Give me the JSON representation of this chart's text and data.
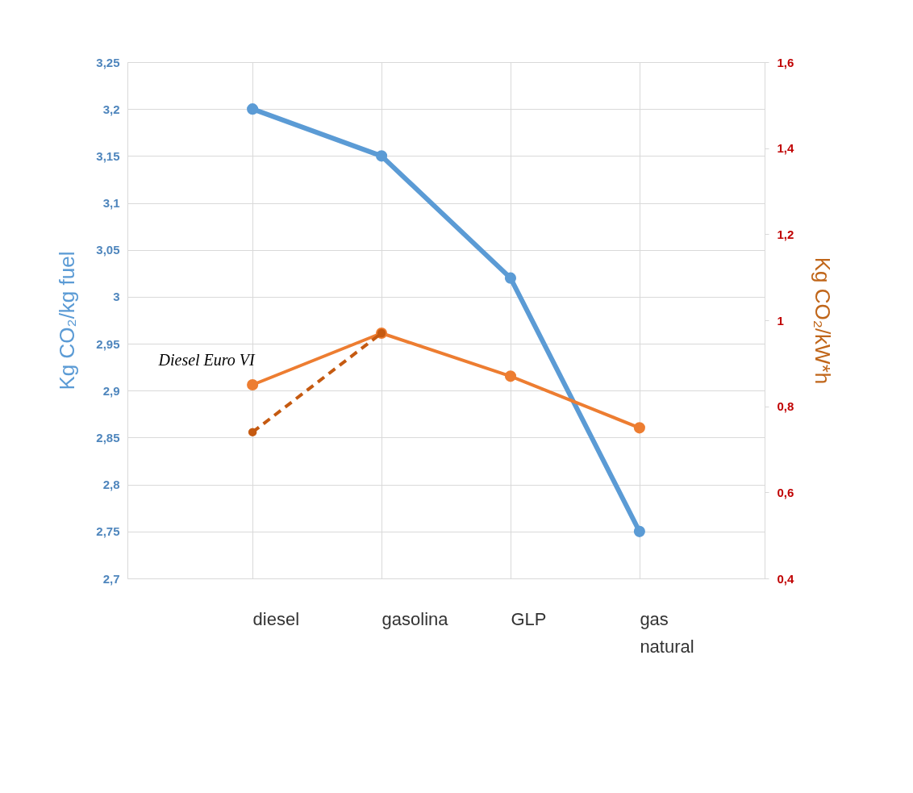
{
  "chart_data": {
    "type": "line",
    "categories": [
      "diesel",
      "gasolina",
      "GLP",
      "gas natural"
    ],
    "ylabel": "Kg CO₂/kg fuel",
    "y2label": "Kg CO₂/kW*h",
    "ylim": [
      2.7,
      3.25
    ],
    "yticks": [
      {
        "value": 2.7,
        "label": "2,7"
      },
      {
        "value": 2.75,
        "label": "2,75"
      },
      {
        "value": 2.8,
        "label": "2,8"
      },
      {
        "value": 2.85,
        "label": "2,85"
      },
      {
        "value": 2.9,
        "label": "2,9"
      },
      {
        "value": 2.95,
        "label": "2,95"
      },
      3,
      {
        "value": 3.05,
        "label": "3,05"
      },
      {
        "value": 3.1,
        "label": "3,1"
      },
      {
        "value": 3.15,
        "label": "3,15"
      },
      {
        "value": 3.2,
        "label": "3,2"
      },
      {
        "value": 3.25,
        "label": "3,25"
      }
    ],
    "y2lim": [
      0.4,
      1.6
    ],
    "y2ticks": [
      {
        "value": 0.4,
        "label": "0,4"
      },
      {
        "value": 0.6,
        "label": "0,6"
      },
      {
        "value": 0.8,
        "label": "0,8"
      },
      1,
      {
        "value": 1.2,
        "label": "1,2"
      },
      {
        "value": 1.4,
        "label": "1,4"
      },
      {
        "value": 1.6,
        "label": "1,6"
      }
    ],
    "series": [
      {
        "color": "#5b9bd5",
        "values": [
          3.2,
          3.15,
          3.02,
          2.75
        ]
      },
      {
        "color": "#ed7d31",
        "axis": "y2",
        "values": [
          0.85,
          0.97,
          0.87,
          0.75
        ]
      },
      {
        "color": "#c55a11",
        "axis": "y2",
        "line_style": "dashed",
        "values": [
          0.74,
          0.97,
          null,
          null
        ]
      }
    ],
    "annotations": [
      "Diesel Euro VI"
    ],
    "grid": true,
    "marker": "circle",
    "line_style": "solid"
  }
}
